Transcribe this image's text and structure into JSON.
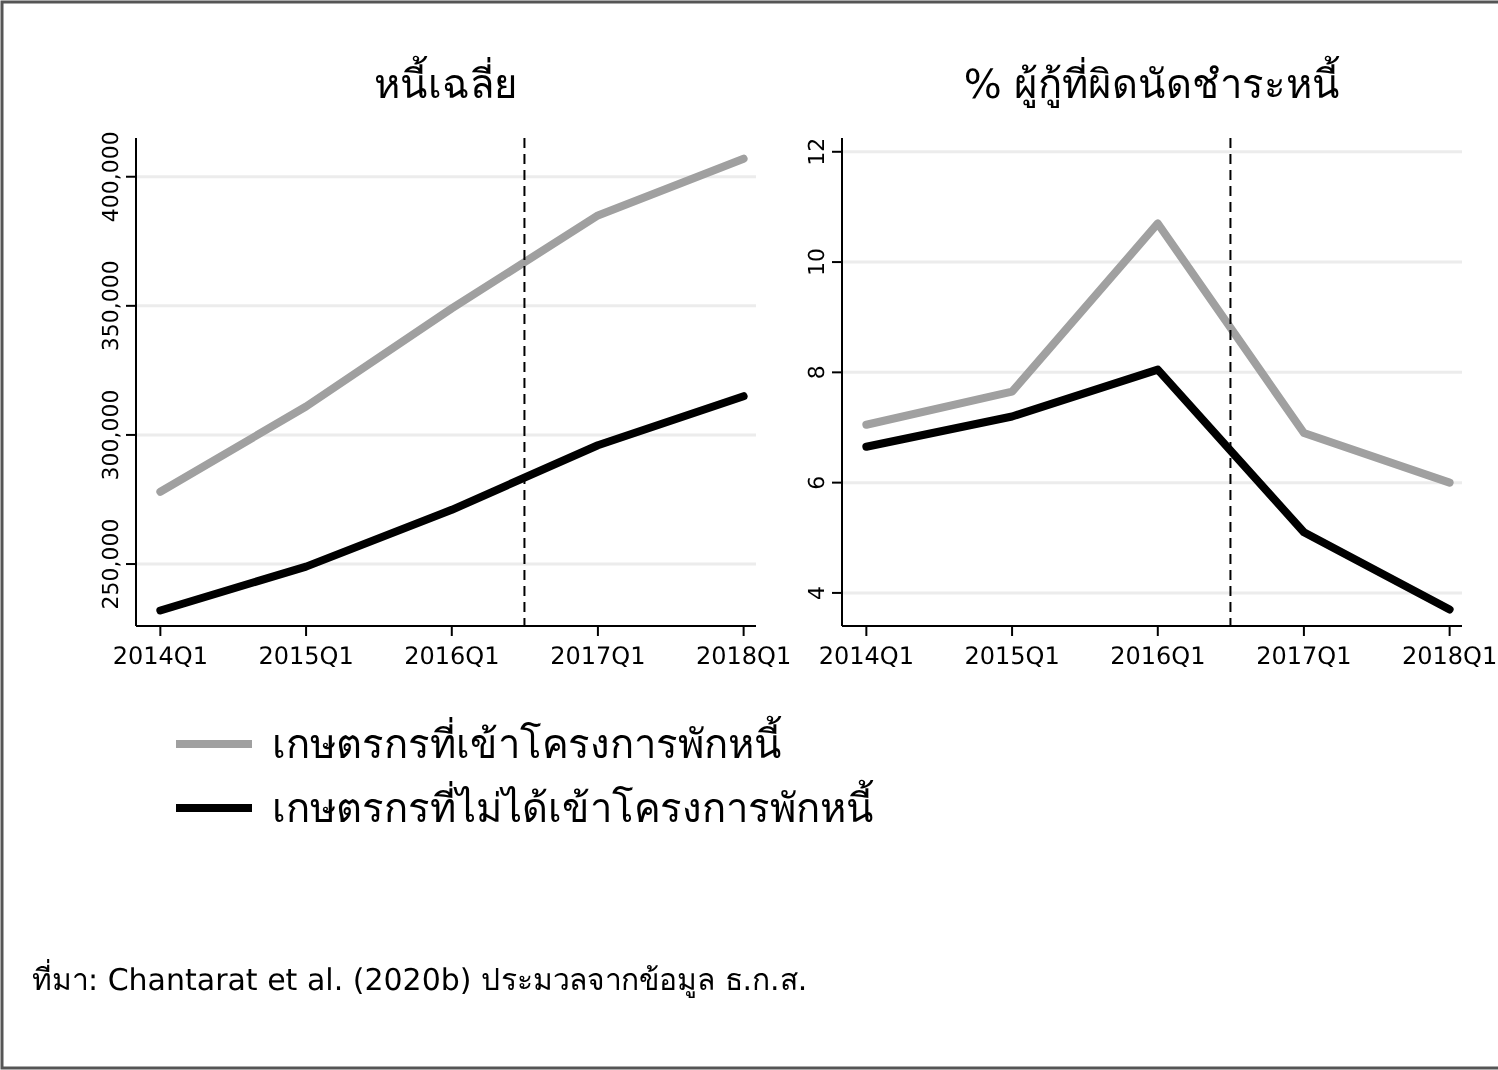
{
  "chart_data": [
    {
      "type": "line",
      "title": "หนี้เฉลี่ย",
      "x": [
        "2014-01",
        "2015-01",
        "2016-01",
        "2017-01",
        "2018-01"
      ],
      "series": [
        {
          "name": "เกษตรกรที่เข้าโครงการพักหนี้",
          "color": "#a0a0a0",
          "values": [
            278000,
            311000,
            349000,
            385000,
            407000
          ]
        },
        {
          "name": "เกษตรกรที่ไม่ได้เข้าโครงการพักหนี้",
          "color": "#000000",
          "values": [
            232000,
            249000,
            271000,
            296000,
            315000
          ]
        }
      ],
      "xlim": [
        "2013-11",
        "2018-02"
      ],
      "xticks": [
        {
          "value": "2014-01",
          "label": "2014Q1"
        },
        {
          "value": "2015-01",
          "label": "2015Q1"
        },
        {
          "value": "2016-01",
          "label": "2016Q1"
        },
        {
          "value": "2017-01",
          "label": "2017Q1"
        },
        {
          "value": "2018-01",
          "label": "2018Q1"
        }
      ],
      "ylim": [
        226000,
        415000
      ],
      "yticks": [
        {
          "value": 250000,
          "label": "250,000"
        },
        {
          "value": 300000,
          "label": "300,000"
        },
        {
          "value": 350000,
          "label": "350,000"
        },
        {
          "value": 400000,
          "label": "400,000"
        }
      ],
      "ref_lines": [
        {
          "axis": "x",
          "value": "2016-07",
          "color": "#000000",
          "line_style": "dashed"
        }
      ],
      "grid": "y",
      "legend": "bottom",
      "annotations": [
        "ที่มา: Chantarat et al. (2020b) ประมวลจากข้อมูล ธ.ก.ส."
      ]
    },
    {
      "type": "line",
      "title": "% ผู้กู้ที่ผิดนัดชำระหนี้",
      "x": [
        "2014-01",
        "2015-01",
        "2016-01",
        "2017-01",
        "2018-01"
      ],
      "series": [
        {
          "color": "#a0a0a0",
          "values": [
            7.05,
            7.65,
            10.7,
            6.9,
            6.0
          ]
        },
        {
          "color": "#000000",
          "values": [
            6.65,
            7.2,
            8.05,
            5.1,
            3.7
          ]
        }
      ],
      "xlim": [
        "2013-11",
        "2018-02"
      ],
      "xticks": [
        {
          "value": "2014-01",
          "label": "2014Q1"
        },
        {
          "value": "2015-01",
          "label": "2015Q1"
        },
        {
          "value": "2016-01",
          "label": "2016Q1"
        },
        {
          "value": "2017-01",
          "label": "2017Q1"
        },
        {
          "value": "2018-01",
          "label": "2018Q1"
        }
      ],
      "ylim": [
        3.4,
        12.25
      ],
      "yticks": [
        4,
        6,
        8,
        10,
        12
      ],
      "ref_lines": [
        {
          "axis": "x",
          "value": "2016-07",
          "color": "#000000",
          "line_style": "dashed"
        }
      ],
      "grid": "y",
      "legend": false
    }
  ]
}
